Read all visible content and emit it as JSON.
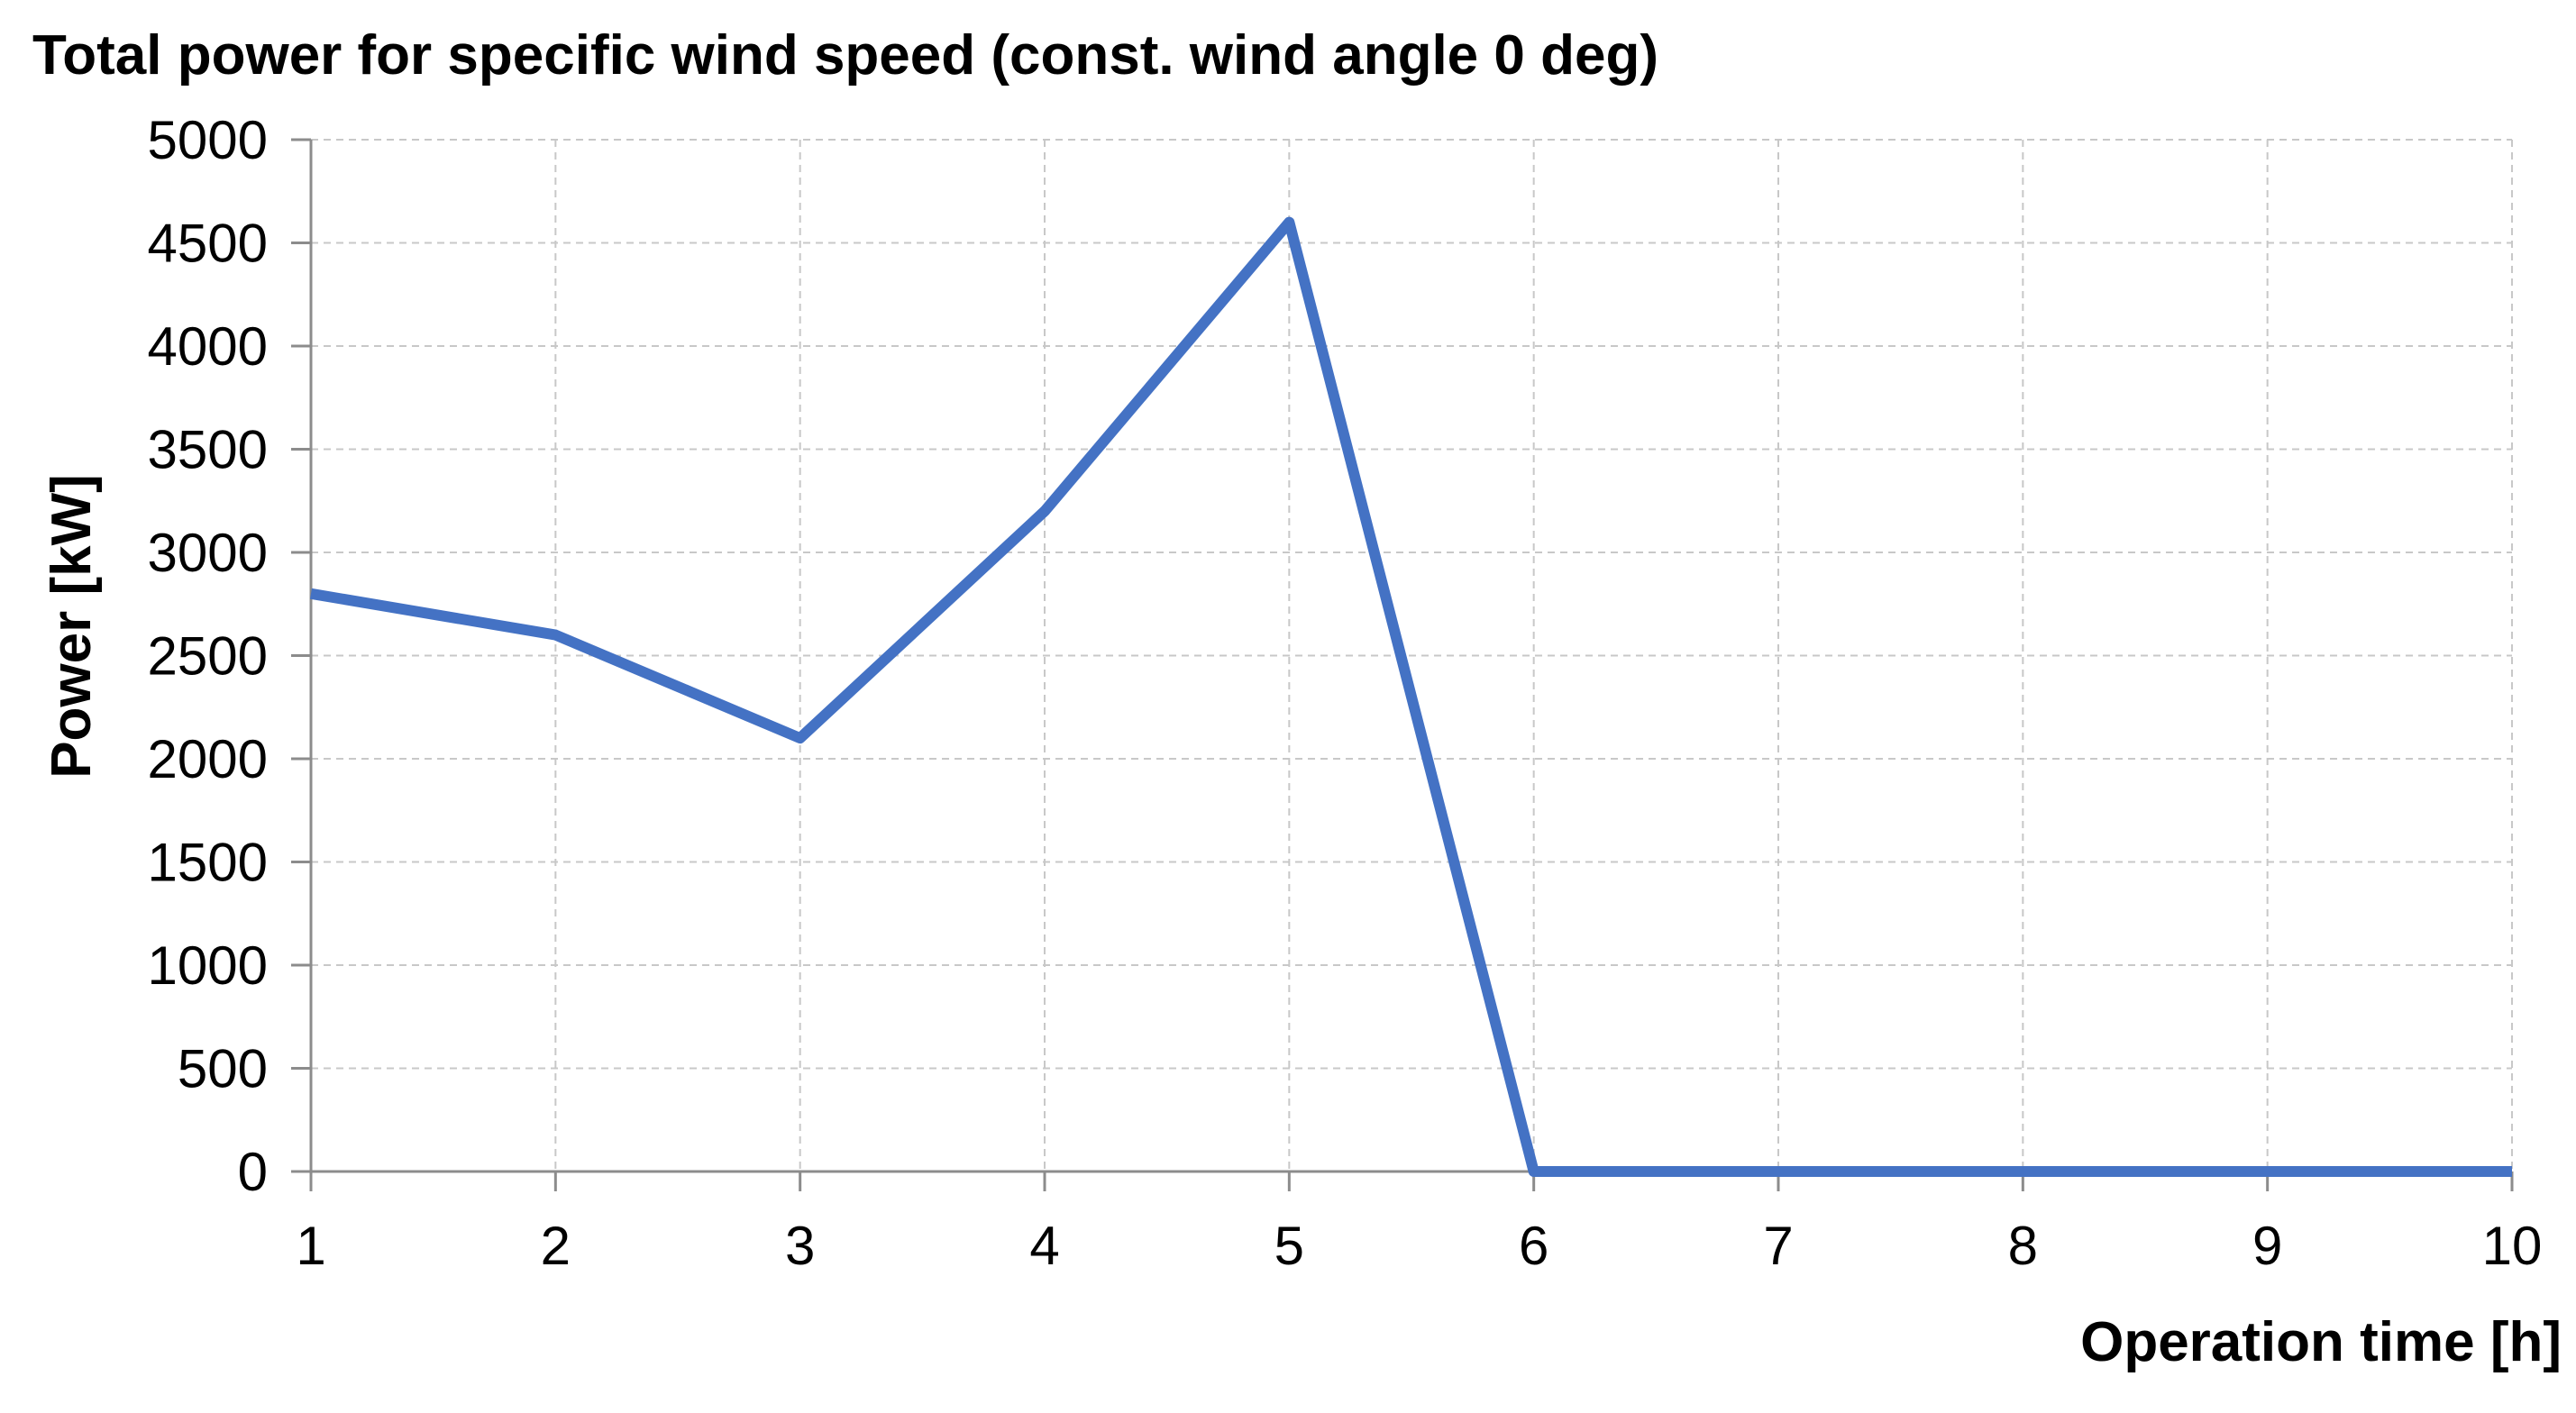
{
  "chart_data": {
    "type": "line",
    "title": "Total power for specific wind speed (const. wind angle 0 deg)",
    "xlabel": "Operation time [h]",
    "ylabel": "Power  [kW]",
    "x": [
      1,
      2,
      3,
      4,
      5,
      6,
      7,
      8,
      9,
      10
    ],
    "series": [
      {
        "values": [
          2800,
          2600,
          2100,
          3200,
          4600,
          0,
          0,
          0,
          0,
          0
        ],
        "color": "#4472c4"
      }
    ],
    "xlim": [
      1,
      10
    ],
    "ylim": [
      0,
      5000
    ],
    "xticks": [
      1,
      2,
      3,
      4,
      5,
      6,
      7,
      8,
      9,
      10
    ],
    "yticks": [
      0,
      500,
      1000,
      1500,
      2000,
      2500,
      3000,
      3500,
      4000,
      4500,
      5000
    ],
    "grid": true,
    "grid_style": "dashed",
    "legend": "none"
  }
}
